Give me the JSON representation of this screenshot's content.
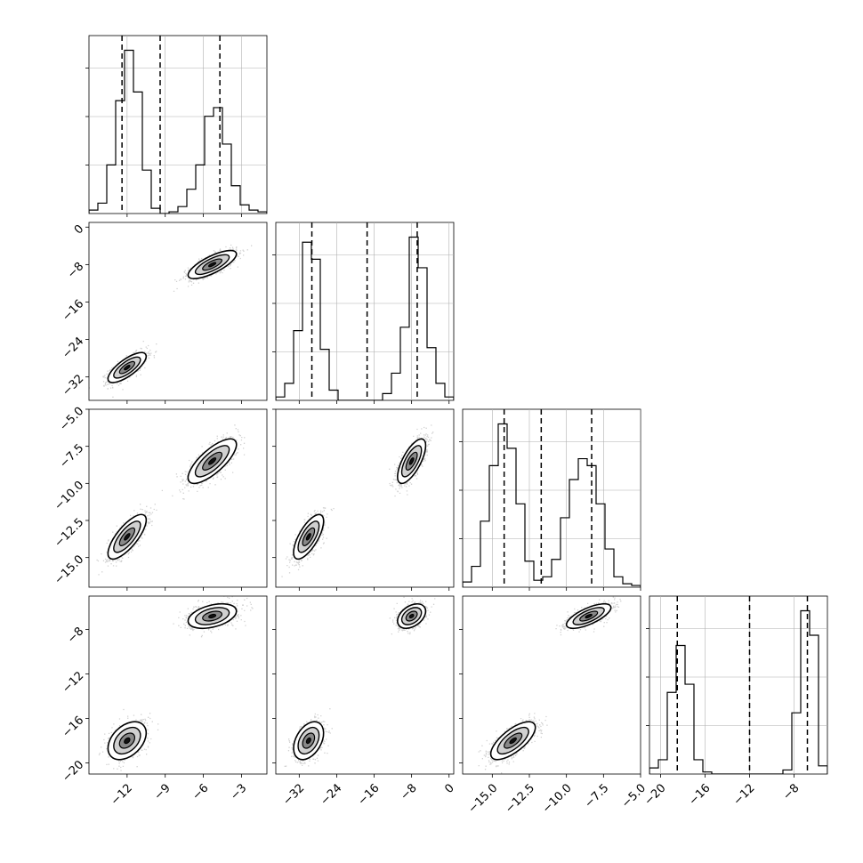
{
  "chart_data": {
    "type": "corner",
    "title": "",
    "parameter_labels": [
      "",
      "",
      "",
      ""
    ],
    "axes": [
      {
        "range": [
          -15.0,
          -1.0
        ],
        "ticks": [
          -12,
          -9,
          -6,
          -3
        ],
        "tick_labels": [
          "−12",
          "−9",
          "−6",
          "−3"
        ]
      },
      {
        "range": [
          -37.0,
          1.0
        ],
        "ticks": [
          -32,
          -24,
          -16,
          -8,
          0
        ],
        "tick_labels": [
          "−32",
          "−24",
          "−16",
          "−8",
          "0"
        ]
      },
      {
        "range": [
          -17.0,
          -5.0
        ],
        "ticks": [
          -15.0,
          -12.5,
          -10.0,
          -7.5,
          -5.0
        ],
        "tick_labels": [
          "−15.0",
          "−12.5",
          "−10.0",
          "−7.5",
          "−5.0"
        ]
      },
      {
        "range": [
          -21.0,
          -5.0
        ],
        "ticks": [
          -20,
          -16,
          -12,
          -8
        ],
        "tick_labels": [
          "−20",
          "−16",
          "−12",
          "−8"
        ]
      }
    ],
    "quantiles": [
      [
        -12.4,
        -9.4,
        -4.7
      ],
      [
        -29.3,
        -17.5,
        -6.8
      ],
      [
        -14.2,
        -11.7,
        -8.3
      ],
      [
        -18.5,
        -12.0,
        -6.8
      ]
    ],
    "histograms": [
      {
        "bin_edges": [
          -15,
          -14.3,
          -13.6,
          -12.9,
          -12.2,
          -11.5,
          -10.8,
          -10.1,
          -9.4,
          -8.7,
          -8.0,
          -7.3,
          -6.6,
          -5.9,
          -5.2,
          -4.5,
          -3.8,
          -3.1,
          -2.4,
          -1.7,
          -1.0
        ],
        "counts": [
          2,
          6,
          28,
          65,
          94,
          70,
          25,
          3,
          0,
          1,
          4,
          14,
          28,
          56,
          61,
          40,
          16,
          5,
          2,
          1
        ]
      },
      {
        "bin_edges": [
          -37.0,
          -35.1,
          -33.2,
          -31.3,
          -29.4,
          -27.5,
          -25.6,
          -23.7,
          -21.8,
          -19.9,
          -18.0,
          -16.1,
          -14.2,
          -12.3,
          -10.4,
          -8.5,
          -6.6,
          -4.7,
          -2.8,
          -0.9,
          1.0
        ],
        "counts": [
          2,
          10,
          41,
          93,
          83,
          30,
          6,
          0,
          0,
          0,
          0,
          0,
          4,
          16,
          43,
          96,
          78,
          31,
          10,
          2
        ]
      },
      {
        "bin_edges": [
          -17.0,
          -16.4,
          -15.8,
          -15.2,
          -14.6,
          -14.0,
          -13.4,
          -12.8,
          -12.2,
          -11.6,
          -11.0,
          -10.4,
          -9.8,
          -9.2,
          -8.6,
          -8.0,
          -7.4,
          -6.8,
          -6.2,
          -5.6,
          -5.0
        ],
        "counts": [
          3,
          12,
          38,
          70,
          94,
          80,
          48,
          15,
          4,
          6,
          16,
          40,
          62,
          74,
          70,
          48,
          22,
          6,
          2,
          1
        ]
      },
      {
        "bin_edges": [
          -21.0,
          -20.2,
          -19.4,
          -18.6,
          -17.8,
          -17.0,
          -16.2,
          -15.4,
          -14.6,
          -13.8,
          -13.0,
          -12.2,
          -11.4,
          -10.6,
          -9.8,
          -9.0,
          -8.2,
          -7.4,
          -6.6,
          -5.8,
          -5.0
        ],
        "counts": [
          3,
          7,
          40,
          63,
          44,
          7,
          1,
          0,
          0,
          0,
          0,
          0,
          0,
          0,
          0,
          2,
          30,
          80,
          68,
          4
        ]
      }
    ],
    "modes": [
      {
        "center": [
          -12.0,
          -30.0,
          -13.6,
          -18.0
        ],
        "std": [
          0.75,
          1.6,
          0.75,
          0.85
        ],
        "weight": 0.5
      },
      {
        "center": [
          -5.3,
          -8.0,
          -8.5,
          -6.8
        ],
        "std": [
          0.95,
          1.5,
          0.75,
          0.55
        ],
        "weight": 0.5
      }
    ]
  }
}
